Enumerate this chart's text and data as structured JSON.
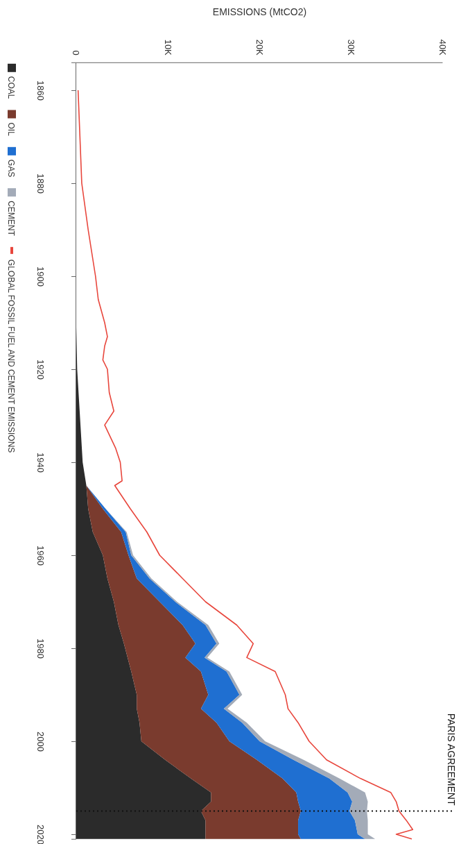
{
  "chart_data": {
    "type": "area",
    "stacked": true,
    "orientation": "horizontal",
    "xlabel": "EMISSIONS (MtCO2)",
    "ylim": [
      2021,
      1854
    ],
    "yticks": [
      1860,
      1880,
      1900,
      1920,
      1940,
      1960,
      1980,
      2000,
      2020
    ],
    "xlim": [
      0,
      40000
    ],
    "xticks": [
      0,
      {
        "value": 10000,
        "label": "10K"
      },
      {
        "value": 20000,
        "label": "20K"
      },
      {
        "value": 30000,
        "label": "30K"
      },
      {
        "value": 40000,
        "label": "40K"
      }
    ],
    "grid": false,
    "legend": "left",
    "series": [
      {
        "name": "COAL",
        "color": "#2b2b2b",
        "x": [
          1911,
          1920,
          1930,
          1940,
          1945,
          1950,
          1955,
          1960,
          1965,
          1970,
          1975,
          1979,
          1982,
          1985,
          1990,
          1993,
          1996,
          2000,
          2004,
          2008,
          2011,
          2013,
          2015,
          2017,
          2020,
          2021
        ],
        "values": [
          0,
          100,
          400,
          700,
          1100,
          1300,
          1800,
          2900,
          3400,
          4100,
          4600,
          5200,
          5600,
          6000,
          6600,
          6600,
          6900,
          7100,
          9700,
          12500,
          14700,
          14700,
          13600,
          14100,
          14100,
          14100
        ]
      },
      {
        "name": "OIL",
        "color": "#7a3b2e",
        "x": [
          1911,
          1920,
          1930,
          1940,
          1945,
          1950,
          1955,
          1960,
          1965,
          1970,
          1975,
          1979,
          1982,
          1985,
          1990,
          1993,
          1996,
          2000,
          2004,
          2008,
          2011,
          2013,
          2015,
          2017,
          2020,
          2021
        ],
        "values": [
          0,
          0,
          0,
          0,
          0,
          1600,
          3100,
          2800,
          3200,
          5000,
          7000,
          7800,
          6300,
          7600,
          7800,
          7000,
          8400,
          9600,
          10000,
          10000,
          9300,
          9500,
          10900,
          10100,
          10100,
          10400
        ]
      },
      {
        "name": "GAS",
        "color": "#1f6fd1",
        "x": [
          1911,
          1920,
          1930,
          1940,
          1945,
          1950,
          1955,
          1960,
          1965,
          1970,
          1975,
          1979,
          1982,
          1985,
          1990,
          1993,
          1996,
          2000,
          2004,
          2008,
          2011,
          2013,
          2015,
          2017,
          2020,
          2021
        ],
        "values": [
          0,
          0,
          0,
          0,
          0,
          300,
          500,
          300,
          1400,
          1700,
          2500,
          2300,
          2100,
          2800,
          3400,
          2500,
          2800,
          3300,
          4000,
          5100,
          5600,
          5900,
          5300,
          6200,
          6500,
          7000
        ]
      },
      {
        "name": "CEMENT",
        "color": "#a3abb8",
        "x": [
          1911,
          1920,
          1930,
          1940,
          1945,
          1950,
          1955,
          1960,
          1965,
          1970,
          1975,
          1979,
          1982,
          1985,
          1990,
          1993,
          1996,
          2000,
          2004,
          2008,
          2011,
          2013,
          2015,
          2017,
          2020,
          2021
        ],
        "values": [
          0,
          0,
          0,
          0,
          0,
          0,
          100,
          200,
          200,
          200,
          300,
          300,
          300,
          300,
          300,
          400,
          500,
          600,
          1100,
          1100,
          1900,
          1700,
          1900,
          1400,
          1100,
          1100
        ]
      },
      {
        "name": "GLOBAL FOSSIL FUEL AND CEMENT EMISSIONS",
        "type": "line",
        "color": "#e8463c",
        "x": [
          1860,
          1870,
          1880,
          1890,
          1900,
          1905,
          1910,
          1913,
          1915,
          1918,
          1920,
          1925,
          1929,
          1932,
          1937,
          1940,
          1944,
          1945,
          1950,
          1955,
          1960,
          1965,
          1970,
          1975,
          1979,
          1982,
          1985,
          1990,
          1993,
          1996,
          2000,
          2004,
          2008,
          2011,
          2013,
          2015,
          2017,
          2019,
          2020,
          2021
        ],
        "values": [
          200,
          400,
          600,
          1300,
          2100,
          2400,
          3100,
          3400,
          3100,
          2900,
          3400,
          3600,
          4100,
          3100,
          4300,
          4800,
          5000,
          4200,
          5900,
          7700,
          9100,
          11600,
          14100,
          17500,
          19300,
          18600,
          21700,
          22800,
          23100,
          24200,
          25400,
          27300,
          31000,
          34300,
          34900,
          35200,
          36000,
          36700,
          34900,
          36600
        ]
      }
    ],
    "ref_lines": [
      {
        "axis": "y",
        "value": 2015,
        "label": "PARIS AGREEMENT",
        "line_style": "dotted",
        "color": "#111111"
      }
    ]
  }
}
